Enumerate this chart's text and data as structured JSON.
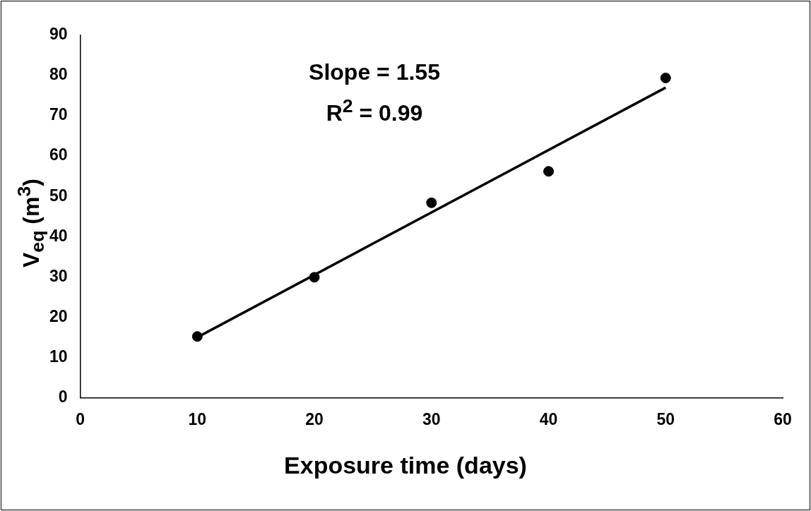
{
  "chart_data": {
    "type": "scatter",
    "xlabel": "Exposure time (days)",
    "ylabel": "V$_{eq}$ (m$^{3}$)",
    "annotations": [
      "Slope = 1.55",
      "R$^{2}$ = 0.99"
    ],
    "series": [
      {
        "type": "scatter",
        "color": "#000000",
        "x": [
          10,
          20,
          30,
          40,
          50
        ],
        "values": [
          15.2,
          29.9,
          48.4,
          56.2,
          79.4
        ],
        "marker": "circle"
      },
      {
        "type": "line",
        "color": "#000000",
        "x": [
          10,
          50
        ],
        "values": [
          15,
          77
        ],
        "marker": "none"
      }
    ],
    "xlim": [
      0,
      60
    ],
    "xticks": [
      0,
      10,
      20,
      30,
      40,
      50,
      60
    ],
    "ylim": [
      0,
      90
    ],
    "yticks": [
      0,
      10,
      20,
      30,
      40,
      50,
      60,
      70,
      80,
      90
    ],
    "grid": false,
    "legend": false
  }
}
